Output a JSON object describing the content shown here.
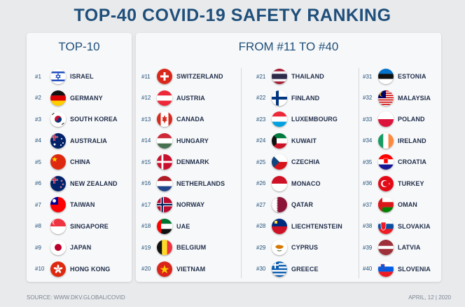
{
  "title": "TOP-40 COVID-19 SAFETY RANKING",
  "left_header": "TOP-10",
  "right_header": "FROM #11 TO #40",
  "top10": [
    {
      "rank": "#1",
      "country": "ISRAEL",
      "flag": "israel-flag-icon"
    },
    {
      "rank": "#2",
      "country": "GERMANY",
      "flag": "germany-flag-icon"
    },
    {
      "rank": "#3",
      "country": "SOUTH KOREA",
      "flag": "south-korea-flag-icon"
    },
    {
      "rank": "#4",
      "country": "AUSTRALIA",
      "flag": "australia-flag-icon"
    },
    {
      "rank": "#5",
      "country": "CHINA",
      "flag": "china-flag-icon"
    },
    {
      "rank": "#6",
      "country": "NEW ZEALAND",
      "flag": "new-zealand-flag-icon"
    },
    {
      "rank": "#7",
      "country": "TAIWAN",
      "flag": "taiwan-flag-icon"
    },
    {
      "rank": "#8",
      "country": "SINGAPORE",
      "flag": "singapore-flag-icon"
    },
    {
      "rank": "#9",
      "country": "JAPAN",
      "flag": "japan-flag-icon"
    },
    {
      "rank": "#10",
      "country": "HONG KONG",
      "flag": "hong-kong-flag-icon"
    }
  ],
  "col11": [
    {
      "rank": "#11",
      "country": "SWITZERLAND",
      "flag": "switzerland-flag-icon"
    },
    {
      "rank": "#12",
      "country": "AUSTRIA",
      "flag": "austria-flag-icon"
    },
    {
      "rank": "#13",
      "country": "CANADA",
      "flag": "canada-flag-icon"
    },
    {
      "rank": "#14",
      "country": "HUNGARY",
      "flag": "hungary-flag-icon"
    },
    {
      "rank": "#15",
      "country": "DENMARK",
      "flag": "denmark-flag-icon"
    },
    {
      "rank": "#16",
      "country": "NETHERLANDS",
      "flag": "netherlands-flag-icon"
    },
    {
      "rank": "#17",
      "country": "NORWAY",
      "flag": "norway-flag-icon"
    },
    {
      "rank": "#18",
      "country": "UAE",
      "flag": "uae-flag-icon"
    },
    {
      "rank": "#19",
      "country": "BELGIUM",
      "flag": "belgium-flag-icon"
    },
    {
      "rank": "#20",
      "country": "VIETNAM",
      "flag": "vietnam-flag-icon"
    }
  ],
  "col21": [
    {
      "rank": "#21",
      "country": "THAILAND",
      "flag": "thailand-flag-icon"
    },
    {
      "rank": "#22",
      "country": "FINLAND",
      "flag": "finland-flag-icon"
    },
    {
      "rank": "#23",
      "country": "LUXEMBOURG",
      "flag": "luxembourg-flag-icon"
    },
    {
      "rank": "#24",
      "country": "KUWAIT",
      "flag": "kuwait-flag-icon"
    },
    {
      "rank": "#25",
      "country": "CZECHIA",
      "flag": "czechia-flag-icon"
    },
    {
      "rank": "#26",
      "country": "MONACO",
      "flag": "monaco-flag-icon"
    },
    {
      "rank": "#27",
      "country": "QATAR",
      "flag": "qatar-flag-icon"
    },
    {
      "rank": "#28",
      "country": "LIECHTENSTEIN",
      "flag": "liechtenstein-flag-icon"
    },
    {
      "rank": "#29",
      "country": "CYPRUS",
      "flag": "cyprus-flag-icon"
    },
    {
      "rank": "#30",
      "country": "GREECE",
      "flag": "greece-flag-icon"
    }
  ],
  "col31": [
    {
      "rank": "#31",
      "country": "ESTONIA",
      "flag": "estonia-flag-icon"
    },
    {
      "rank": "#32",
      "country": "MALAYSIA",
      "flag": "malaysia-flag-icon"
    },
    {
      "rank": "#33",
      "country": "POLAND",
      "flag": "poland-flag-icon"
    },
    {
      "rank": "#34",
      "country": "IRELAND",
      "flag": "ireland-flag-icon"
    },
    {
      "rank": "#35",
      "country": "CROATIA",
      "flag": "croatia-flag-icon"
    },
    {
      "rank": "#36",
      "country": "TURKEY",
      "flag": "turkey-flag-icon"
    },
    {
      "rank": "#37",
      "country": "OMAN",
      "flag": "oman-flag-icon"
    },
    {
      "rank": "#38",
      "country": "SLOVAKIA",
      "flag": "slovakia-flag-icon"
    },
    {
      "rank": "#39",
      "country": "LATVIA",
      "flag": "latvia-flag-icon"
    },
    {
      "rank": "#40",
      "country": "SLOVENIA",
      "flag": "slovenia-flag-icon"
    }
  ],
  "footer_source": "SOURCE: WWW.DKV.GLOBAL/COVID",
  "footer_date": "APRIL, 12 | 2020",
  "colors": {
    "title": "#1f4f7a",
    "text": "#1f2d4a",
    "background": "#e9eaec",
    "card": "#f7f8f9"
  }
}
